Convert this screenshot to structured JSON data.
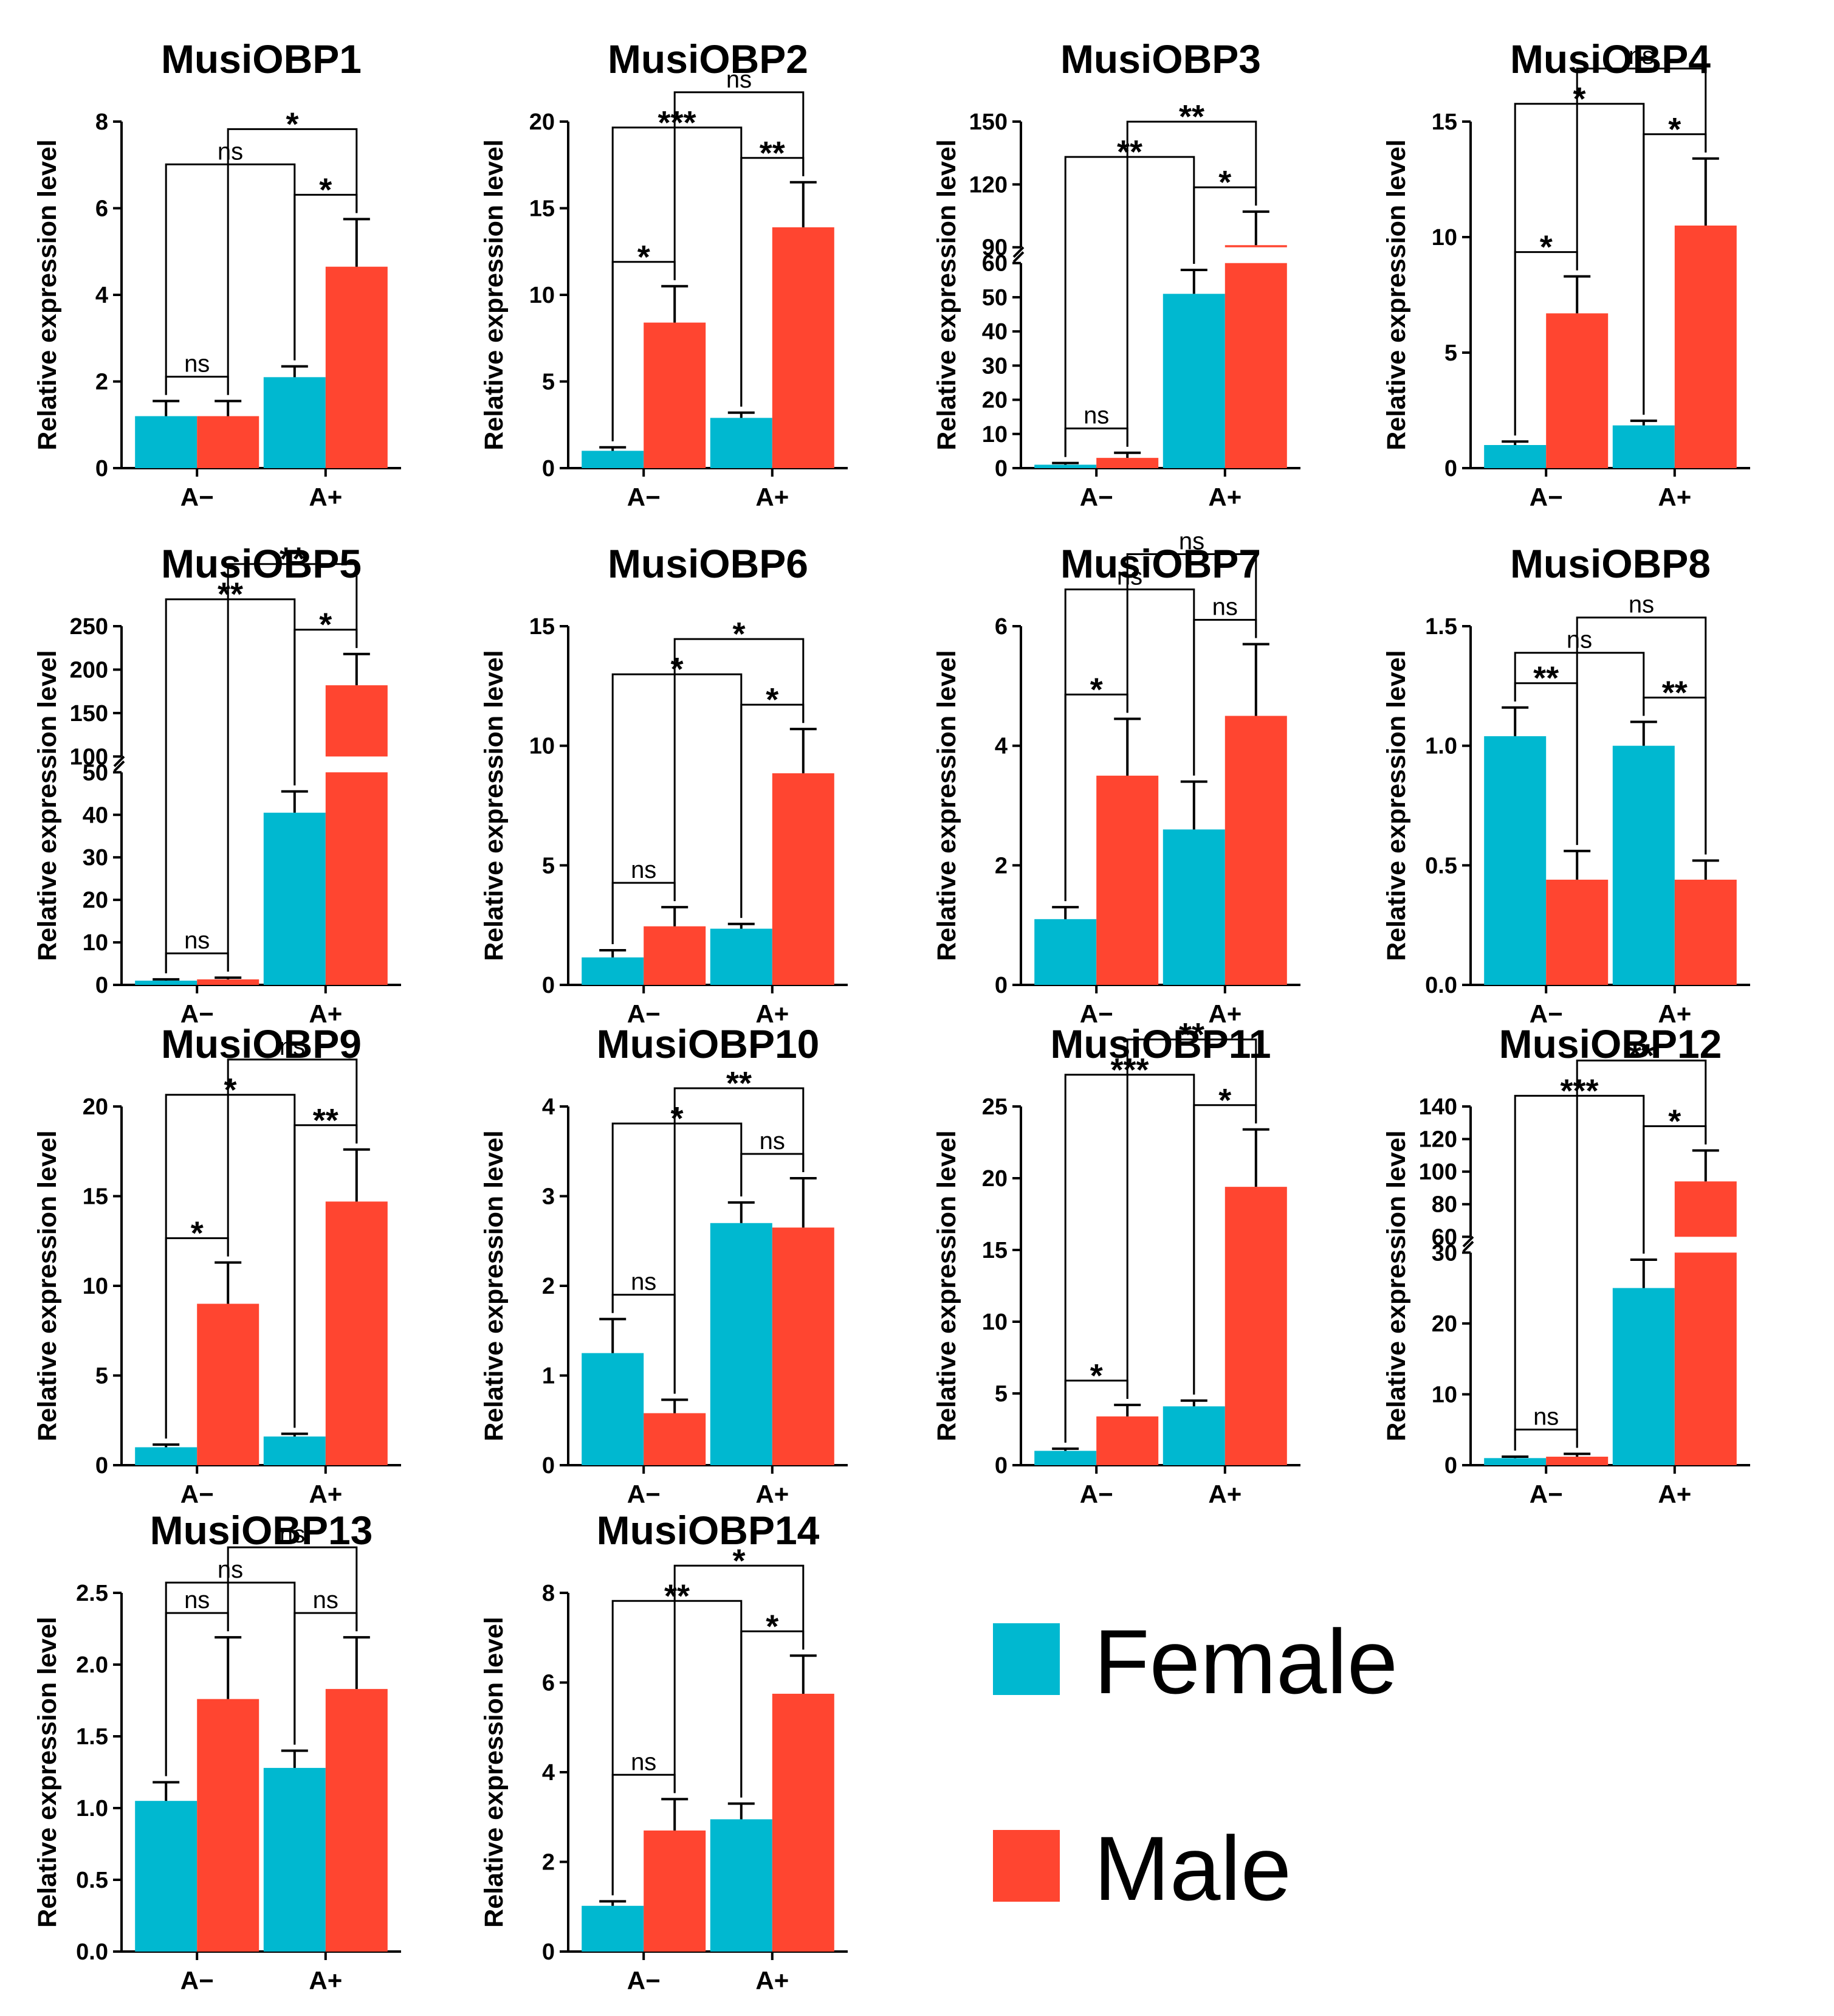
{
  "chart_data": [
    {
      "type": "bar",
      "title": "MusiOBP1",
      "ylabel": "Relative expression level",
      "categories": [
        "A−",
        "A+"
      ],
      "ylim": [
        0,
        8
      ],
      "yticks": [
        0,
        2,
        4,
        6,
        8
      ],
      "series": [
        {
          "name": "Female",
          "values": [
            1.2,
            2.1
          ],
          "errors": [
            0.35,
            0.25
          ]
        },
        {
          "name": "Male",
          "values": [
            1.2,
            4.65
          ],
          "errors": [
            0.35,
            1.1
          ]
        }
      ],
      "annotations": [
        {
          "text": "ns",
          "from": [
            0,
            0
          ],
          "to": [
            0,
            1
          ]
        },
        {
          "text": "*",
          "from": [
            1,
            0
          ],
          "to": [
            1,
            1
          ]
        },
        {
          "text": "ns",
          "from": [
            0,
            0
          ],
          "to": [
            1,
            0
          ]
        },
        {
          "text": "*",
          "from": [
            0,
            1
          ],
          "to": [
            1,
            1
          ]
        }
      ]
    },
    {
      "type": "bar",
      "title": "MusiOBP2",
      "ylabel": "Relative expression level",
      "categories": [
        "A−",
        "A+"
      ],
      "ylim": [
        0,
        20
      ],
      "yticks": [
        0,
        5,
        10,
        15,
        20
      ],
      "series": [
        {
          "name": "Female",
          "values": [
            1.0,
            2.9
          ],
          "errors": [
            0.2,
            0.3
          ]
        },
        {
          "name": "Male",
          "values": [
            8.4,
            13.9
          ],
          "errors": [
            2.1,
            2.6
          ]
        }
      ],
      "annotations": [
        {
          "text": "*",
          "from": [
            0,
            0
          ],
          "to": [
            0,
            1
          ]
        },
        {
          "text": "**",
          "from": [
            1,
            0
          ],
          "to": [
            1,
            1
          ]
        },
        {
          "text": "***",
          "from": [
            0,
            0
          ],
          "to": [
            1,
            0
          ]
        },
        {
          "text": "ns",
          "from": [
            0,
            1
          ],
          "to": [
            1,
            1
          ]
        }
      ]
    },
    {
      "type": "bar",
      "title": "MusiOBP3",
      "ylabel": "Relative expression level",
      "categories": [
        "A−",
        "A+"
      ],
      "axis_break": [
        60,
        90
      ],
      "ylim": [
        0,
        150
      ],
      "yticks": [
        0,
        10,
        20,
        30,
        40,
        50,
        60,
        90,
        120,
        150
      ],
      "series": [
        {
          "name": "Female",
          "values": [
            1.0,
            51
          ],
          "errors": [
            0.5,
            7
          ]
        },
        {
          "name": "Male",
          "values": [
            3.0,
            91
          ],
          "errors": [
            1.5,
            16
          ]
        }
      ],
      "annotations": [
        {
          "text": "ns",
          "from": [
            0,
            0
          ],
          "to": [
            0,
            1
          ]
        },
        {
          "text": "*",
          "from": [
            1,
            0
          ],
          "to": [
            1,
            1
          ]
        },
        {
          "text": "**",
          "from": [
            0,
            0
          ],
          "to": [
            1,
            0
          ]
        },
        {
          "text": "**",
          "from": [
            0,
            1
          ],
          "to": [
            1,
            1
          ]
        }
      ]
    },
    {
      "type": "bar",
      "title": "MusiOBP4",
      "ylabel": "Relative expression level",
      "categories": [
        "A−",
        "A+"
      ],
      "ylim": [
        0,
        15
      ],
      "yticks": [
        0,
        5,
        10,
        15
      ],
      "series": [
        {
          "name": "Female",
          "values": [
            1.0,
            1.85
          ],
          "errors": [
            0.15,
            0.2
          ]
        },
        {
          "name": "Male",
          "values": [
            6.7,
            10.5
          ],
          "errors": [
            1.6,
            2.9
          ]
        }
      ],
      "annotations": [
        {
          "text": "*",
          "from": [
            0,
            0
          ],
          "to": [
            0,
            1
          ]
        },
        {
          "text": "*",
          "from": [
            1,
            0
          ],
          "to": [
            1,
            1
          ]
        },
        {
          "text": "*",
          "from": [
            0,
            0
          ],
          "to": [
            1,
            0
          ]
        },
        {
          "text": "ns",
          "from": [
            0,
            1
          ],
          "to": [
            1,
            1
          ]
        }
      ]
    },
    {
      "type": "bar",
      "title": "MusiOBP5",
      "ylabel": "Relative expression level",
      "categories": [
        "A−",
        "A+"
      ],
      "axis_break": [
        50,
        100
      ],
      "ylim": [
        0,
        250
      ],
      "yticks": [
        0,
        10,
        20,
        30,
        40,
        50,
        100,
        150,
        200,
        250
      ],
      "series": [
        {
          "name": "Female",
          "values": [
            1.0,
            40.5
          ],
          "errors": [
            0.3,
            5
          ]
        },
        {
          "name": "Male",
          "values": [
            1.3,
            182
          ],
          "errors": [
            0.4,
            36
          ]
        }
      ],
      "annotations": [
        {
          "text": "ns",
          "from": [
            0,
            0
          ],
          "to": [
            0,
            1
          ]
        },
        {
          "text": "*",
          "from": [
            1,
            0
          ],
          "to": [
            1,
            1
          ]
        },
        {
          "text": "**",
          "from": [
            0,
            0
          ],
          "to": [
            1,
            0
          ]
        },
        {
          "text": "**",
          "from": [
            0,
            1
          ],
          "to": [
            1,
            1
          ]
        }
      ]
    },
    {
      "type": "bar",
      "title": "MusiOBP6",
      "ylabel": "Relative expression level",
      "categories": [
        "A−",
        "A+"
      ],
      "ylim": [
        0,
        15
      ],
      "yticks": [
        0,
        5,
        10,
        15
      ],
      "series": [
        {
          "name": "Female",
          "values": [
            1.15,
            2.35
          ],
          "errors": [
            0.3,
            0.2
          ]
        },
        {
          "name": "Male",
          "values": [
            2.45,
            8.85
          ],
          "errors": [
            0.8,
            1.85
          ]
        }
      ],
      "annotations": [
        {
          "text": "ns",
          "from": [
            0,
            0
          ],
          "to": [
            0,
            1
          ]
        },
        {
          "text": "*",
          "from": [
            1,
            0
          ],
          "to": [
            1,
            1
          ]
        },
        {
          "text": "*",
          "from": [
            0,
            0
          ],
          "to": [
            1,
            0
          ]
        },
        {
          "text": "*",
          "from": [
            0,
            1
          ],
          "to": [
            1,
            1
          ]
        }
      ]
    },
    {
      "type": "bar",
      "title": "MusiOBP7",
      "ylabel": "Relative expression level",
      "categories": [
        "A−",
        "A+"
      ],
      "ylim": [
        0,
        6
      ],
      "yticks": [
        0,
        2,
        4,
        6
      ],
      "series": [
        {
          "name": "Female",
          "values": [
            1.1,
            2.6
          ],
          "errors": [
            0.2,
            0.8
          ]
        },
        {
          "name": "Male",
          "values": [
            3.5,
            4.5
          ],
          "errors": [
            0.95,
            1.2
          ]
        }
      ],
      "annotations": [
        {
          "text": "*",
          "from": [
            0,
            0
          ],
          "to": [
            0,
            1
          ]
        },
        {
          "text": "ns",
          "from": [
            1,
            0
          ],
          "to": [
            1,
            1
          ]
        },
        {
          "text": "ns",
          "from": [
            0,
            0
          ],
          "to": [
            1,
            0
          ]
        },
        {
          "text": "ns",
          "from": [
            0,
            1
          ],
          "to": [
            1,
            1
          ]
        }
      ]
    },
    {
      "type": "bar",
      "title": "MusiOBP8",
      "ylabel": "Relative expression level",
      "categories": [
        "A−",
        "A+"
      ],
      "ylim": [
        0,
        1.5
      ],
      "yticks": [
        "0.0",
        "0.5",
        "1.0",
        "1.5"
      ],
      "series": [
        {
          "name": "Female",
          "values": [
            1.04,
            1.0
          ],
          "errors": [
            0.12,
            0.1
          ]
        },
        {
          "name": "Male",
          "values": [
            0.44,
            0.44
          ],
          "errors": [
            0.12,
            0.08
          ]
        }
      ],
      "annotations": [
        {
          "text": "**",
          "from": [
            0,
            0
          ],
          "to": [
            0,
            1
          ]
        },
        {
          "text": "**",
          "from": [
            1,
            0
          ],
          "to": [
            1,
            1
          ]
        },
        {
          "text": "ns",
          "from": [
            0,
            0
          ],
          "to": [
            1,
            0
          ]
        },
        {
          "text": "ns",
          "from": [
            0,
            1
          ],
          "to": [
            1,
            1
          ]
        }
      ]
    },
    {
      "type": "bar",
      "title": "MusiOBP9",
      "ylabel": "Relative expression level",
      "categories": [
        "A−",
        "A+"
      ],
      "ylim": [
        0,
        20
      ],
      "yticks": [
        0,
        5,
        10,
        15,
        20
      ],
      "series": [
        {
          "name": "Female",
          "values": [
            1.0,
            1.6
          ],
          "errors": [
            0.15,
            0.15
          ]
        },
        {
          "name": "Male",
          "values": [
            9.0,
            14.7
          ],
          "errors": [
            2.3,
            2.9
          ]
        }
      ],
      "annotations": [
        {
          "text": "*",
          "from": [
            0,
            0
          ],
          "to": [
            0,
            1
          ]
        },
        {
          "text": "**",
          "from": [
            1,
            0
          ],
          "to": [
            1,
            1
          ]
        },
        {
          "text": "*",
          "from": [
            0,
            0
          ],
          "to": [
            1,
            0
          ]
        },
        {
          "text": "ns",
          "from": [
            0,
            1
          ],
          "to": [
            1,
            1
          ]
        }
      ]
    },
    {
      "type": "bar",
      "title": "MusiOBP10",
      "ylabel": "Relative expression level",
      "categories": [
        "A−",
        "A+"
      ],
      "ylim": [
        0,
        4
      ],
      "yticks": [
        0,
        1,
        2,
        3,
        4
      ],
      "series": [
        {
          "name": "Female",
          "values": [
            1.25,
            2.7
          ],
          "errors": [
            0.38,
            0.23
          ]
        },
        {
          "name": "Male",
          "values": [
            0.58,
            2.65
          ],
          "errors": [
            0.15,
            0.55
          ]
        }
      ],
      "annotations": [
        {
          "text": "ns",
          "from": [
            0,
            0
          ],
          "to": [
            0,
            1
          ]
        },
        {
          "text": "ns",
          "from": [
            1,
            0
          ],
          "to": [
            1,
            1
          ]
        },
        {
          "text": "*",
          "from": [
            0,
            0
          ],
          "to": [
            1,
            0
          ]
        },
        {
          "text": "**",
          "from": [
            0,
            1
          ],
          "to": [
            1,
            1
          ]
        }
      ]
    },
    {
      "type": "bar",
      "title": "MusiOBP11",
      "ylabel": "Relative expression level",
      "categories": [
        "A−",
        "A+"
      ],
      "ylim": [
        0,
        25
      ],
      "yticks": [
        0,
        5,
        10,
        15,
        20,
        25
      ],
      "series": [
        {
          "name": "Female",
          "values": [
            1.0,
            4.1
          ],
          "errors": [
            0.15,
            0.4
          ]
        },
        {
          "name": "Male",
          "values": [
            3.4,
            19.4
          ],
          "errors": [
            0.8,
            4.0
          ]
        }
      ],
      "annotations": [
        {
          "text": "*",
          "from": [
            0,
            0
          ],
          "to": [
            0,
            1
          ]
        },
        {
          "text": "*",
          "from": [
            1,
            0
          ],
          "to": [
            1,
            1
          ]
        },
        {
          "text": "***",
          "from": [
            0,
            0
          ],
          "to": [
            1,
            0
          ]
        },
        {
          "text": "**",
          "from": [
            0,
            1
          ],
          "to": [
            1,
            1
          ]
        }
      ]
    },
    {
      "type": "bar",
      "title": "MusiOBP12",
      "ylabel": "Relative expression level",
      "categories": [
        "A−",
        "A+"
      ],
      "axis_break": [
        30,
        60
      ],
      "ylim": [
        0,
        140
      ],
      "yticks": [
        0,
        10,
        20,
        30,
        60,
        80,
        100,
        120,
        140
      ],
      "series": [
        {
          "name": "Female",
          "values": [
            1.0,
            25
          ],
          "errors": [
            0.2,
            4
          ]
        },
        {
          "name": "Male",
          "values": [
            1.2,
            94
          ],
          "errors": [
            0.4,
            19
          ]
        }
      ],
      "annotations": [
        {
          "text": "ns",
          "from": [
            0,
            0
          ],
          "to": [
            0,
            1
          ]
        },
        {
          "text": "*",
          "from": [
            1,
            0
          ],
          "to": [
            1,
            1
          ]
        },
        {
          "text": "***",
          "from": [
            0,
            0
          ],
          "to": [
            1,
            0
          ]
        },
        {
          "text": "**",
          "from": [
            0,
            1
          ],
          "to": [
            1,
            1
          ]
        }
      ]
    },
    {
      "type": "bar",
      "title": "MusiOBP13",
      "ylabel": "Relative expression level",
      "categories": [
        "A−",
        "A+"
      ],
      "ylim": [
        0,
        2.5
      ],
      "yticks": [
        "0.0",
        "0.5",
        "1.0",
        "1.5",
        "2.0",
        "2.5"
      ],
      "series": [
        {
          "name": "Female",
          "values": [
            1.05,
            1.28
          ],
          "errors": [
            0.13,
            0.12
          ]
        },
        {
          "name": "Male",
          "values": [
            1.76,
            1.83
          ],
          "errors": [
            0.43,
            0.36
          ]
        }
      ],
      "annotations": [
        {
          "text": "ns",
          "from": [
            0,
            0
          ],
          "to": [
            0,
            1
          ]
        },
        {
          "text": "ns",
          "from": [
            1,
            0
          ],
          "to": [
            1,
            1
          ]
        },
        {
          "text": "ns",
          "from": [
            0,
            0
          ],
          "to": [
            1,
            0
          ]
        },
        {
          "text": "ns",
          "from": [
            0,
            1
          ],
          "to": [
            1,
            1
          ]
        }
      ]
    },
    {
      "type": "bar",
      "title": "MusiOBP14",
      "ylabel": "Relative expression level",
      "categories": [
        "A−",
        "A+"
      ],
      "ylim": [
        0,
        8
      ],
      "yticks": [
        0,
        2,
        4,
        6,
        8
      ],
      "series": [
        {
          "name": "Female",
          "values": [
            1.02,
            2.95
          ],
          "errors": [
            0.1,
            0.35
          ]
        },
        {
          "name": "Male",
          "values": [
            2.7,
            5.75
          ],
          "errors": [
            0.7,
            0.85
          ]
        }
      ],
      "annotations": [
        {
          "text": "ns",
          "from": [
            0,
            0
          ],
          "to": [
            0,
            1
          ]
        },
        {
          "text": "*",
          "from": [
            1,
            0
          ],
          "to": [
            1,
            1
          ]
        },
        {
          "text": "**",
          "from": [
            0,
            0
          ],
          "to": [
            1,
            0
          ]
        },
        {
          "text": "*",
          "from": [
            0,
            1
          ],
          "to": [
            1,
            1
          ]
        }
      ]
    }
  ],
  "legend": [
    {
      "label": "Female",
      "color": "#00B8D0"
    },
    {
      "label": "Male",
      "color": "#FF4530"
    }
  ]
}
